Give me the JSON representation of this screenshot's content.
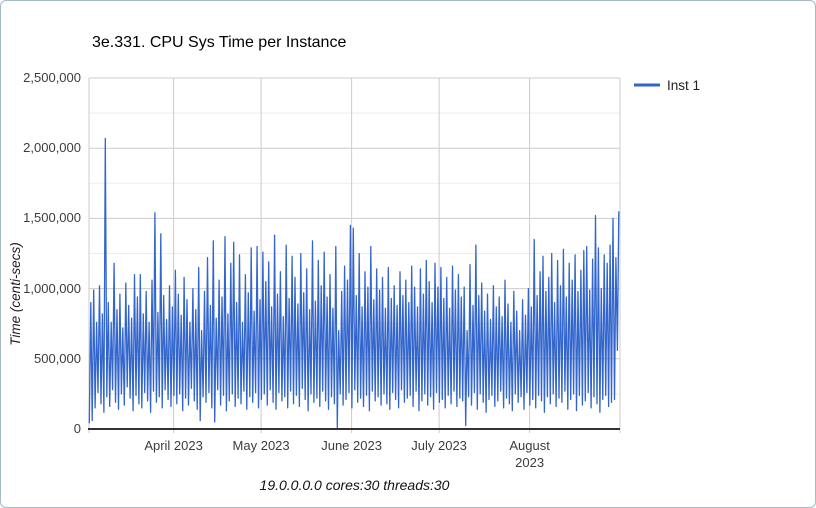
{
  "window": {
    "background": "#ffffff",
    "border_color": "#a6bac6"
  },
  "chart_data": {
    "type": "line",
    "title": "3e.331. CPU Sys Time per Instance",
    "xlabel": "",
    "ylabel": "Time (centi-secs)",
    "caption": "19.0.0.0.0 cores:30 threads:30",
    "legend": {
      "position": "right",
      "entries": [
        {
          "label": "Inst 1",
          "color": "#3366CC"
        }
      ]
    },
    "grid": {
      "major_color": "#cccccc",
      "minor_color": "#ededed",
      "axis_color": "#333333",
      "minor_gridlines": true
    },
    "y_axis": {
      "min": 0,
      "max": 2500000,
      "minor_step": 250000,
      "ticks": [
        {
          "value": 0,
          "label": "0"
        },
        {
          "value": 500000,
          "label": "500,000"
        },
        {
          "value": 1000000,
          "label": "1,000,000"
        },
        {
          "value": 1500000,
          "label": "1,500,000"
        },
        {
          "value": 2000000,
          "label": "2,000,000"
        },
        {
          "value": 2500000,
          "label": "2,500,000"
        }
      ]
    },
    "x_axis": {
      "span_days": 182,
      "ticks": [
        {
          "day": 0,
          "lines": []
        },
        {
          "day": 29,
          "lines": [
            "April 2023"
          ]
        },
        {
          "day": 59,
          "lines": [
            "May 2023"
          ]
        },
        {
          "day": 90,
          "lines": [
            "June 2023"
          ]
        },
        {
          "day": 120,
          "lines": [
            "July 2023"
          ]
        },
        {
          "day": 151,
          "lines": [
            "August",
            "2023"
          ]
        },
        {
          "day": 182,
          "lines": []
        }
      ]
    },
    "series": [
      {
        "name": "Inst 1",
        "color": "#3366CC",
        "unit": "centi-secs",
        "sampling": "per-day low/high envelope, 2 points per day, early March through end of August 2023",
        "low": [
          40000,
          60000,
          150000,
          260000,
          180000,
          120000,
          230000,
          160000,
          280000,
          190000,
          140000,
          250000,
          170000,
          300000,
          220000,
          130000,
          240000,
          180000,
          150000,
          260000,
          200000,
          120000,
          270000,
          190000,
          230000,
          150000,
          280000,
          210000,
          160000,
          240000,
          180000,
          250000,
          130000,
          220000,
          170000,
          290000,
          200000,
          140000,
          60000,
          230000,
          190000,
          260000,
          150000,
          50000,
          280000,
          170000,
          240000,
          130000,
          200000,
          250000,
          160000,
          220000,
          180000,
          270000,
          140000,
          230000,
          190000,
          260000,
          150000,
          210000,
          250000,
          170000,
          280000,
          190000,
          140000,
          260000,
          200000,
          230000,
          150000,
          270000,
          180000,
          240000,
          160000,
          290000,
          210000,
          130000,
          250000,
          190000,
          220000,
          160000,
          270000,
          200000,
          140000,
          230000,
          180000,
          10000,
          250000,
          170000,
          210000,
          260000,
          150000,
          280000,
          190000,
          220000,
          160000,
          240000,
          130000,
          270000,
          200000,
          230000,
          170000,
          250000,
          180000,
          140000,
          260000,
          210000,
          150000,
          280000,
          190000,
          220000,
          240000,
          160000,
          270000,
          130000,
          200000,
          250000,
          170000,
          230000,
          140000,
          260000,
          190000,
          210000,
          150000,
          240000,
          180000,
          270000,
          160000,
          220000,
          200000,
          25000,
          230000,
          170000,
          260000,
          140000,
          250000,
          190000,
          120000,
          210000,
          240000,
          160000,
          200000,
          270000,
          150000,
          220000,
          180000,
          130000,
          250000,
          190000,
          230000,
          140000,
          260000,
          170000,
          210000,
          150000,
          240000,
          200000,
          120000,
          230000,
          180000,
          250000,
          160000,
          220000,
          190000,
          270000,
          140000,
          210000,
          250000,
          130000,
          240000,
          170000,
          200000,
          260000,
          150000,
          230000,
          180000,
          120000,
          210000,
          240000,
          160000,
          190000,
          210000,
          560000
        ],
        "high": [
          900000,
          990000,
          760000,
          1020000,
          820000,
          2070000,
          900000,
          760000,
          1180000,
          850000,
          960000,
          720000,
          1040000,
          880000,
          790000,
          1100000,
          940000,
          1100000,
          820000,
          980000,
          760000,
          1060000,
          1540000,
          830000,
          1390000,
          950000,
          780000,
          1020000,
          870000,
          1130000,
          960000,
          810000,
          1080000,
          920000,
          760000,
          1000000,
          850000,
          1150000,
          700000,
          980000,
          1220000,
          880000,
          1340000,
          790000,
          1060000,
          940000,
          1370000,
          820000,
          1180000,
          1330000,
          900000,
          1240000,
          760000,
          1100000,
          970000,
          1290000,
          840000,
          1300000,
          920000,
          1260000,
          1050000,
          1190000,
          870000,
          1380000,
          960000,
          1120000,
          800000,
          1310000,
          930000,
          1230000,
          1080000,
          890000,
          1250000,
          970000,
          1140000,
          850000,
          1340000,
          910000,
          1200000,
          1020000,
          1260000,
          940000,
          1100000,
          860000,
          1300000,
          700000,
          980000,
          1160000,
          1060000,
          1450000,
          1430000,
          950000,
          1250000,
          870000,
          1120000,
          1010000,
          1300000,
          920000,
          1140000,
          990000,
          1080000,
          860000,
          1150000,
          930000,
          1020000,
          880000,
          1120000,
          950000,
          1060000,
          900000,
          1160000,
          1010000,
          870000,
          1140000,
          960000,
          1200000,
          1050000,
          900000,
          1180000,
          1010000,
          1150000,
          930000,
          1080000,
          860000,
          1160000,
          990000,
          1100000,
          940000,
          1010000,
          700000,
          1170000,
          880000,
          1310000,
          950000,
          1040000,
          840000,
          960000,
          780000,
          1020000,
          870000,
          940000,
          800000,
          1060000,
          890000,
          760000,
          980000,
          840000,
          700000,
          920000,
          810000,
          1000000,
          870000,
          1350000,
          950000,
          1120000,
          1230000,
          980000,
          1080000,
          1250000,
          900000,
          1200000,
          1020000,
          1280000,
          940000,
          1180000,
          1060000,
          1240000,
          980000,
          1130000,
          1270000,
          1300000,
          990000,
          1210000,
          1520000,
          1290000,
          1000000,
          1240000,
          1180000,
          1310000,
          1500000,
          1220000,
          1550000
        ]
      }
    ]
  }
}
